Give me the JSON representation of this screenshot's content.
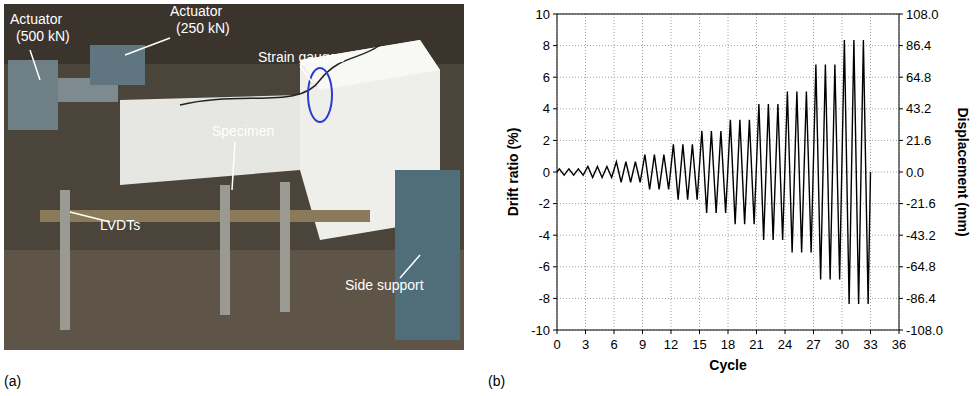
{
  "panel_a": {
    "caption": "(a)",
    "labels": [
      {
        "lines": [
          "Actuator",
          "(500 kN)"
        ]
      },
      {
        "lines": [
          "Actuator",
          "(250 kN)"
        ]
      },
      {
        "lines": [
          "Strain gauges"
        ]
      },
      {
        "lines": [
          "Specimen"
        ]
      },
      {
        "lines": [
          "LVDTs"
        ]
      },
      {
        "lines": [
          "Side support"
        ]
      }
    ]
  },
  "chart_data": {
    "type": "line",
    "annotations": [
      "(b)"
    ],
    "x_label": "Cycle",
    "y_label": "Drift ratio (%)",
    "y2_label": "Displacement (mm)",
    "x": [
      0,
      0.25,
      0.75,
      1.25,
      1.75,
      2.25,
      2.75,
      3.25,
      3.75,
      4.25,
      4.75,
      5.25,
      5.75,
      6.25,
      6.75,
      7.25,
      7.75,
      8.25,
      8.75,
      9.25,
      9.75,
      10.25,
      10.75,
      11.25,
      11.75,
      12.25,
      12.75,
      13.25,
      13.75,
      14.25,
      14.75,
      15.25,
      15.75,
      16.25,
      16.75,
      17.25,
      17.75,
      18.25,
      18.75,
      19.25,
      19.75,
      20.25,
      20.75,
      21.25,
      21.75,
      22.25,
      22.75,
      23.25,
      23.75,
      24.25,
      24.75,
      25.25,
      25.75,
      26.25,
      26.75,
      27.25,
      27.75,
      28.25,
      28.75,
      29.25,
      29.75,
      30.25,
      30.75,
      31.25,
      31.75,
      32.25,
      32.75,
      33
    ],
    "series": [
      {
        "color": "#000000",
        "line_style": "solid",
        "values": [
          0,
          0.2,
          -0.2,
          0.2,
          -0.2,
          0.2,
          -0.2,
          0.35,
          -0.35,
          0.35,
          -0.35,
          0.35,
          -0.35,
          0.65,
          -0.65,
          0.65,
          -0.65,
          0.65,
          -0.65,
          1.1,
          -1.1,
          1.1,
          -1.1,
          1.1,
          -1.1,
          1.75,
          -1.75,
          1.75,
          -1.75,
          1.75,
          -1.75,
          2.6,
          -2.6,
          2.6,
          -2.6,
          2.6,
          -2.6,
          3.3,
          -3.3,
          3.3,
          -3.3,
          3.3,
          -3.3,
          4.3,
          -4.3,
          4.3,
          -4.3,
          4.3,
          -4.3,
          5.1,
          -5.1,
          5.1,
          -5.1,
          5.1,
          -5.1,
          6.8,
          -6.8,
          6.8,
          -6.8,
          6.8,
          -6.8,
          8.35,
          -8.35,
          8.35,
          -8.35,
          8.35,
          -8.35,
          0
        ]
      }
    ],
    "xlim": [
      0,
      36
    ],
    "xticks": [
      0,
      3,
      6,
      9,
      12,
      15,
      18,
      21,
      24,
      27,
      30,
      33,
      36
    ],
    "ylim": [
      -10,
      10
    ],
    "yticks": [
      -10,
      -8,
      -6,
      -4,
      -2,
      0,
      2,
      4,
      6,
      8,
      10
    ],
    "y2lim": [
      -108,
      108
    ],
    "y2ticks": [
      {
        "value": -108,
        "label": "-108.0"
      },
      {
        "value": -86.4,
        "label": "-86.4"
      },
      {
        "value": -64.8,
        "label": "-64.8"
      },
      {
        "value": -43.2,
        "label": "-43.2"
      },
      {
        "value": -21.6,
        "label": "-21.6"
      },
      {
        "value": 0,
        "label": "0.0"
      },
      {
        "value": 21.6,
        "label": "21.6"
      },
      {
        "value": 43.2,
        "label": "43.2"
      },
      {
        "value": 64.8,
        "label": "64.8"
      },
      {
        "value": 86.4,
        "label": "86.4"
      },
      {
        "value": 108,
        "label": "108.0"
      }
    ],
    "grid": true
  }
}
